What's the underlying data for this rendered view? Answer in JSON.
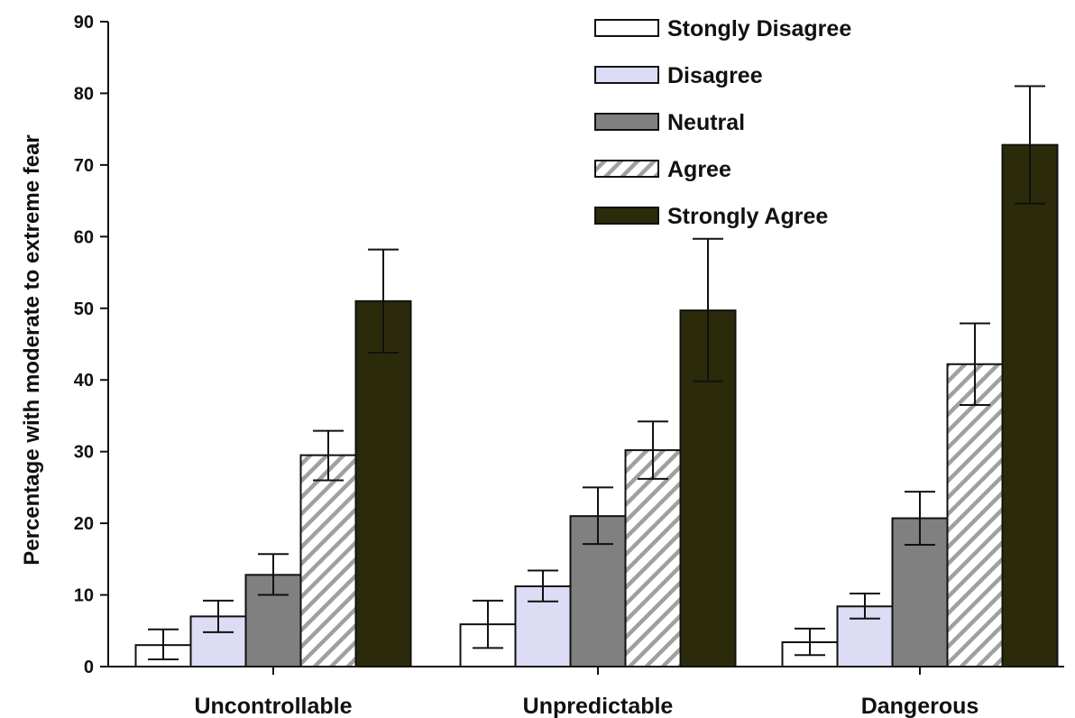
{
  "chart_data": {
    "type": "bar",
    "categories": [
      "Uncontrollable",
      "Unpredictable",
      "Dangerous"
    ],
    "ylabel": "Percentage with moderate to extreme fear",
    "ylim": [
      0,
      90
    ],
    "yticks": [
      "0",
      "10",
      "20",
      "30",
      "40",
      "50",
      "60",
      "70",
      "80",
      "90"
    ],
    "grid": false,
    "legend_position": "top-right",
    "series": [
      {
        "name": "Stongly Disagree",
        "color": "#ffffff",
        "pattern": "solid",
        "values": [
          3.0,
          5.9,
          3.4
        ],
        "err_low": [
          1.0,
          2.6,
          1.6
        ],
        "err_high": [
          5.2,
          9.2,
          5.3
        ]
      },
      {
        "name": "Disagree",
        "color": "#dcdcf4",
        "pattern": "solid",
        "values": [
          7.0,
          11.2,
          8.4
        ],
        "err_low": [
          4.8,
          9.1,
          6.7
        ],
        "err_high": [
          9.2,
          13.4,
          10.2
        ]
      },
      {
        "name": "Neutral",
        "color": "#808080",
        "pattern": "solid",
        "values": [
          12.8,
          21.0,
          20.7
        ],
        "err_low": [
          10.0,
          17.1,
          17.0
        ],
        "err_high": [
          15.7,
          25.0,
          24.4
        ]
      },
      {
        "name": "Agree",
        "color": "#a0a0a0",
        "pattern": "diagonal-hatch",
        "values": [
          29.5,
          30.2,
          42.2
        ],
        "err_low": [
          26.0,
          26.2,
          36.5
        ],
        "err_high": [
          32.9,
          34.2,
          47.9
        ]
      },
      {
        "name": "Strongly Agree",
        "color": "#2b2b0b",
        "pattern": "solid",
        "values": [
          51.0,
          49.7,
          72.8
        ],
        "err_low": [
          43.8,
          39.8,
          64.6
        ],
        "err_high": [
          58.2,
          59.7,
          81.0
        ]
      }
    ]
  }
}
